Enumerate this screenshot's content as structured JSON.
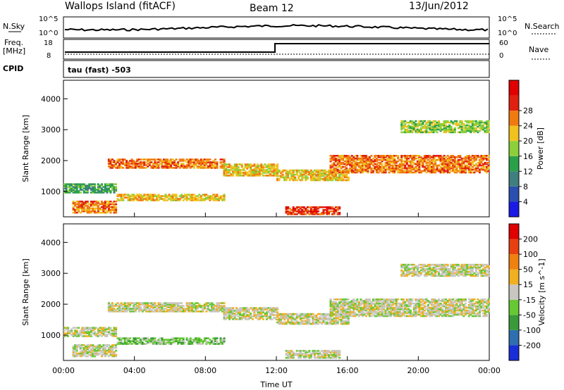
{
  "header": {
    "station": "Wallops Island (fitACF)",
    "beam": "Beam 12",
    "date": "13/Jun/2012"
  },
  "noise_panel": {
    "left_label": "N.Sky",
    "left_ticks": [
      "10^5",
      "10^0"
    ],
    "right_ticks": [
      "10^5",
      "10^0"
    ],
    "right_label": "N.Search"
  },
  "freq_panel": {
    "label_line1": "Freq.",
    "label_line2": "[MHz]",
    "left_ticks": [
      "18",
      "8"
    ],
    "right_ticks": [
      "60",
      "0"
    ],
    "right_label": "Nave"
  },
  "cpid_panel": {
    "label": "CPID",
    "text": "tau (fast) -503"
  },
  "chart_data": [
    {
      "type": "heatmap",
      "title": "",
      "xlabel": "",
      "ylabel": "Slant Range [km]",
      "x_ticks": [
        "00:00",
        "04:00",
        "08:00",
        "12:00",
        "16:00",
        "20:00",
        "00:00"
      ],
      "y_ticks": [
        "1000",
        "2000",
        "3000",
        "4000"
      ],
      "xlim": [
        0,
        24
      ],
      "ylim": [
        180,
        4600
      ],
      "colorbar": {
        "label": "Power [dB]",
        "ticks": [
          "4",
          "8",
          "12",
          "16",
          "20",
          "24",
          "28"
        ],
        "colors": [
          "#1a1ae6",
          "#2a4fb0",
          "#3f7f7f",
          "#2ba04a",
          "#8ccf3a",
          "#f0c21e",
          "#f07a10",
          "#e02010",
          "#e00000"
        ]
      },
      "bands": [
        {
          "t0": 0,
          "t1": 3,
          "r0": 950,
          "r1": 1250,
          "level": 3
        },
        {
          "t0": 2.5,
          "t1": 9,
          "r0": 1750,
          "r1": 2050,
          "level": 6
        },
        {
          "t0": 9,
          "t1": 12,
          "r0": 1500,
          "r1": 1900,
          "level": 5
        },
        {
          "t0": 12,
          "t1": 16,
          "r0": 1350,
          "r1": 1700,
          "level": 5
        },
        {
          "t0": 15,
          "t1": 24,
          "r0": 1600,
          "r1": 2150,
          "level": 6
        },
        {
          "t0": 3,
          "t1": 9,
          "r0": 700,
          "r1": 900,
          "level": 5
        },
        {
          "t0": 12.5,
          "t1": 15.5,
          "r0": 250,
          "r1": 500,
          "level": 7
        },
        {
          "t0": 19,
          "t1": 24,
          "r0": 2900,
          "r1": 3300,
          "level": 4
        },
        {
          "t0": 0.5,
          "t1": 3,
          "r0": 300,
          "r1": 700,
          "level": 6
        }
      ]
    },
    {
      "type": "heatmap",
      "title": "",
      "xlabel": "Time UT",
      "ylabel": "Slant Range [km]",
      "x_ticks": [
        "00:00",
        "04:00",
        "08:00",
        "12:00",
        "16:00",
        "20:00",
        "00:00"
      ],
      "y_ticks": [
        "1000",
        "2000",
        "3000",
        "4000"
      ],
      "xlim": [
        0,
        24
      ],
      "ylim": [
        180,
        4600
      ],
      "colorbar": {
        "label": "Velocity [m s^-1]",
        "ticks": [
          "200",
          "100",
          "50",
          "15",
          "-15",
          "-50",
          "-100",
          "-200"
        ],
        "colors": [
          "#1a2ed8",
          "#2f6fb0",
          "#3a9a3a",
          "#66c833",
          "#c8c6c0",
          "#f0b020",
          "#f08010",
          "#e84010",
          "#e00000"
        ]
      },
      "bands": [
        {
          "t0": 0,
          "t1": 3,
          "r0": 950,
          "r1": 1250,
          "level": 4
        },
        {
          "t0": 2.5,
          "t1": 9,
          "r0": 1750,
          "r1": 2050,
          "level": 4
        },
        {
          "t0": 9,
          "t1": 12,
          "r0": 1500,
          "r1": 1900,
          "level": 4
        },
        {
          "t0": 12,
          "t1": 16,
          "r0": 1350,
          "r1": 1700,
          "level": 4
        },
        {
          "t0": 15,
          "t1": 24,
          "r0": 1600,
          "r1": 2150,
          "level": 4
        },
        {
          "t0": 3,
          "t1": 9,
          "r0": 700,
          "r1": 900,
          "level": 3
        },
        {
          "t0": 12.5,
          "t1": 15.5,
          "r0": 250,
          "r1": 500,
          "level": 4
        },
        {
          "t0": 19,
          "t1": 24,
          "r0": 2900,
          "r1": 3300,
          "level": 4
        },
        {
          "t0": 0.5,
          "t1": 3,
          "r0": 300,
          "r1": 700,
          "level": 4
        }
      ]
    }
  ]
}
